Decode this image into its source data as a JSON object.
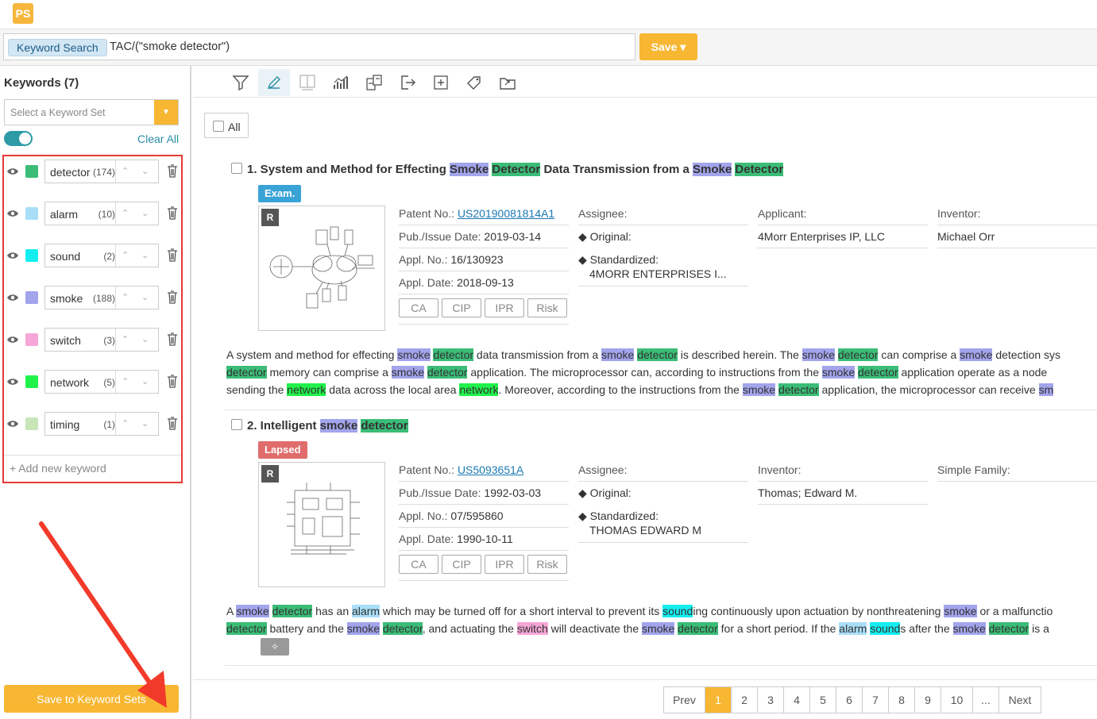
{
  "app": {
    "logo": "PS"
  },
  "search": {
    "chip": "Keyword Search",
    "query": "TAC/(\"smoke detector\")",
    "save_label": "Save ▾"
  },
  "sidebar": {
    "title": "Keywords (7)",
    "keyword_set_placeholder": "Select a Keyword Set",
    "clear_all": "Clear All",
    "add_keyword": "+ Add new keyword",
    "save_sets": "Save to Keyword Sets",
    "keywords": [
      {
        "name": "detector",
        "count": "(174)",
        "color": "#3bbd77"
      },
      {
        "name": "alarm",
        "count": "(10)",
        "color": "#a9def7"
      },
      {
        "name": "sound",
        "count": "(2)",
        "color": "#14eef0"
      },
      {
        "name": "smoke",
        "count": "(188)",
        "color": "#a2a4ec"
      },
      {
        "name": "switch",
        "count": "(3)",
        "color": "#f6a6d7"
      },
      {
        "name": "network",
        "count": "(5)",
        "color": "#1ff24a"
      },
      {
        "name": "timing",
        "count": "(1)",
        "color": "#c8e6b8"
      }
    ]
  },
  "toolbar": {
    "icons": [
      "filter-icon",
      "highlight-icon",
      "split-view-icon",
      "chart-icon",
      "translate-icon",
      "export-icon",
      "add-icon",
      "tag-icon",
      "folder-export-icon"
    ]
  },
  "list": {
    "all_label": "All"
  },
  "results": [
    {
      "num": "1.",
      "status": "Exam.",
      "status_color": "#3aa3d6",
      "patent_label": "Patent No.:",
      "patent_no": "US20190081814A1",
      "pub_label": "Pub./Issue Date:",
      "pub_date": "2019-03-14",
      "appl_label": "Appl. No.:",
      "appl_no": "16/130923",
      "appl_date_label": "Appl. Date:",
      "appl_date": "2018-09-13",
      "assignee_label": "Assignee:",
      "original_label": "◆ Original:",
      "standardized_label": "◆ Standardized:",
      "standardized": "4MORR ENTERPRISES I...",
      "col3_label": "Applicant:",
      "col3_value": "4Morr Enterprises IP, LLC",
      "col4_label": "Inventor:",
      "col4_value": "Michael Orr",
      "pills": [
        "CA",
        "CIP",
        "IPR",
        "Risk"
      ]
    },
    {
      "num": "2.",
      "status": "Lapsed",
      "status_color": "#e06c6c",
      "patent_label": "Patent No.:",
      "patent_no": "US5093651A",
      "pub_label": "Pub./Issue Date:",
      "pub_date": "1992-03-03",
      "appl_label": "Appl. No.:",
      "appl_no": "07/595860",
      "appl_date_label": "Appl. Date:",
      "appl_date": "1990-10-11",
      "assignee_label": "Assignee:",
      "original_label": "◆ Original:",
      "standardized_label": "◆ Standardized:",
      "standardized": "THOMAS EDWARD M",
      "col3_label": "Inventor:",
      "col3_value": "Thomas; Edward M.",
      "col4_label": "Simple Family:",
      "col4_value": "",
      "pills": [
        "CA",
        "CIP",
        "IPR",
        "Risk"
      ]
    }
  ],
  "pagination": [
    "Prev",
    "1",
    "2",
    "3",
    "4",
    "5",
    "6",
    "7",
    "8",
    "9",
    "10",
    "...",
    "Next"
  ]
}
